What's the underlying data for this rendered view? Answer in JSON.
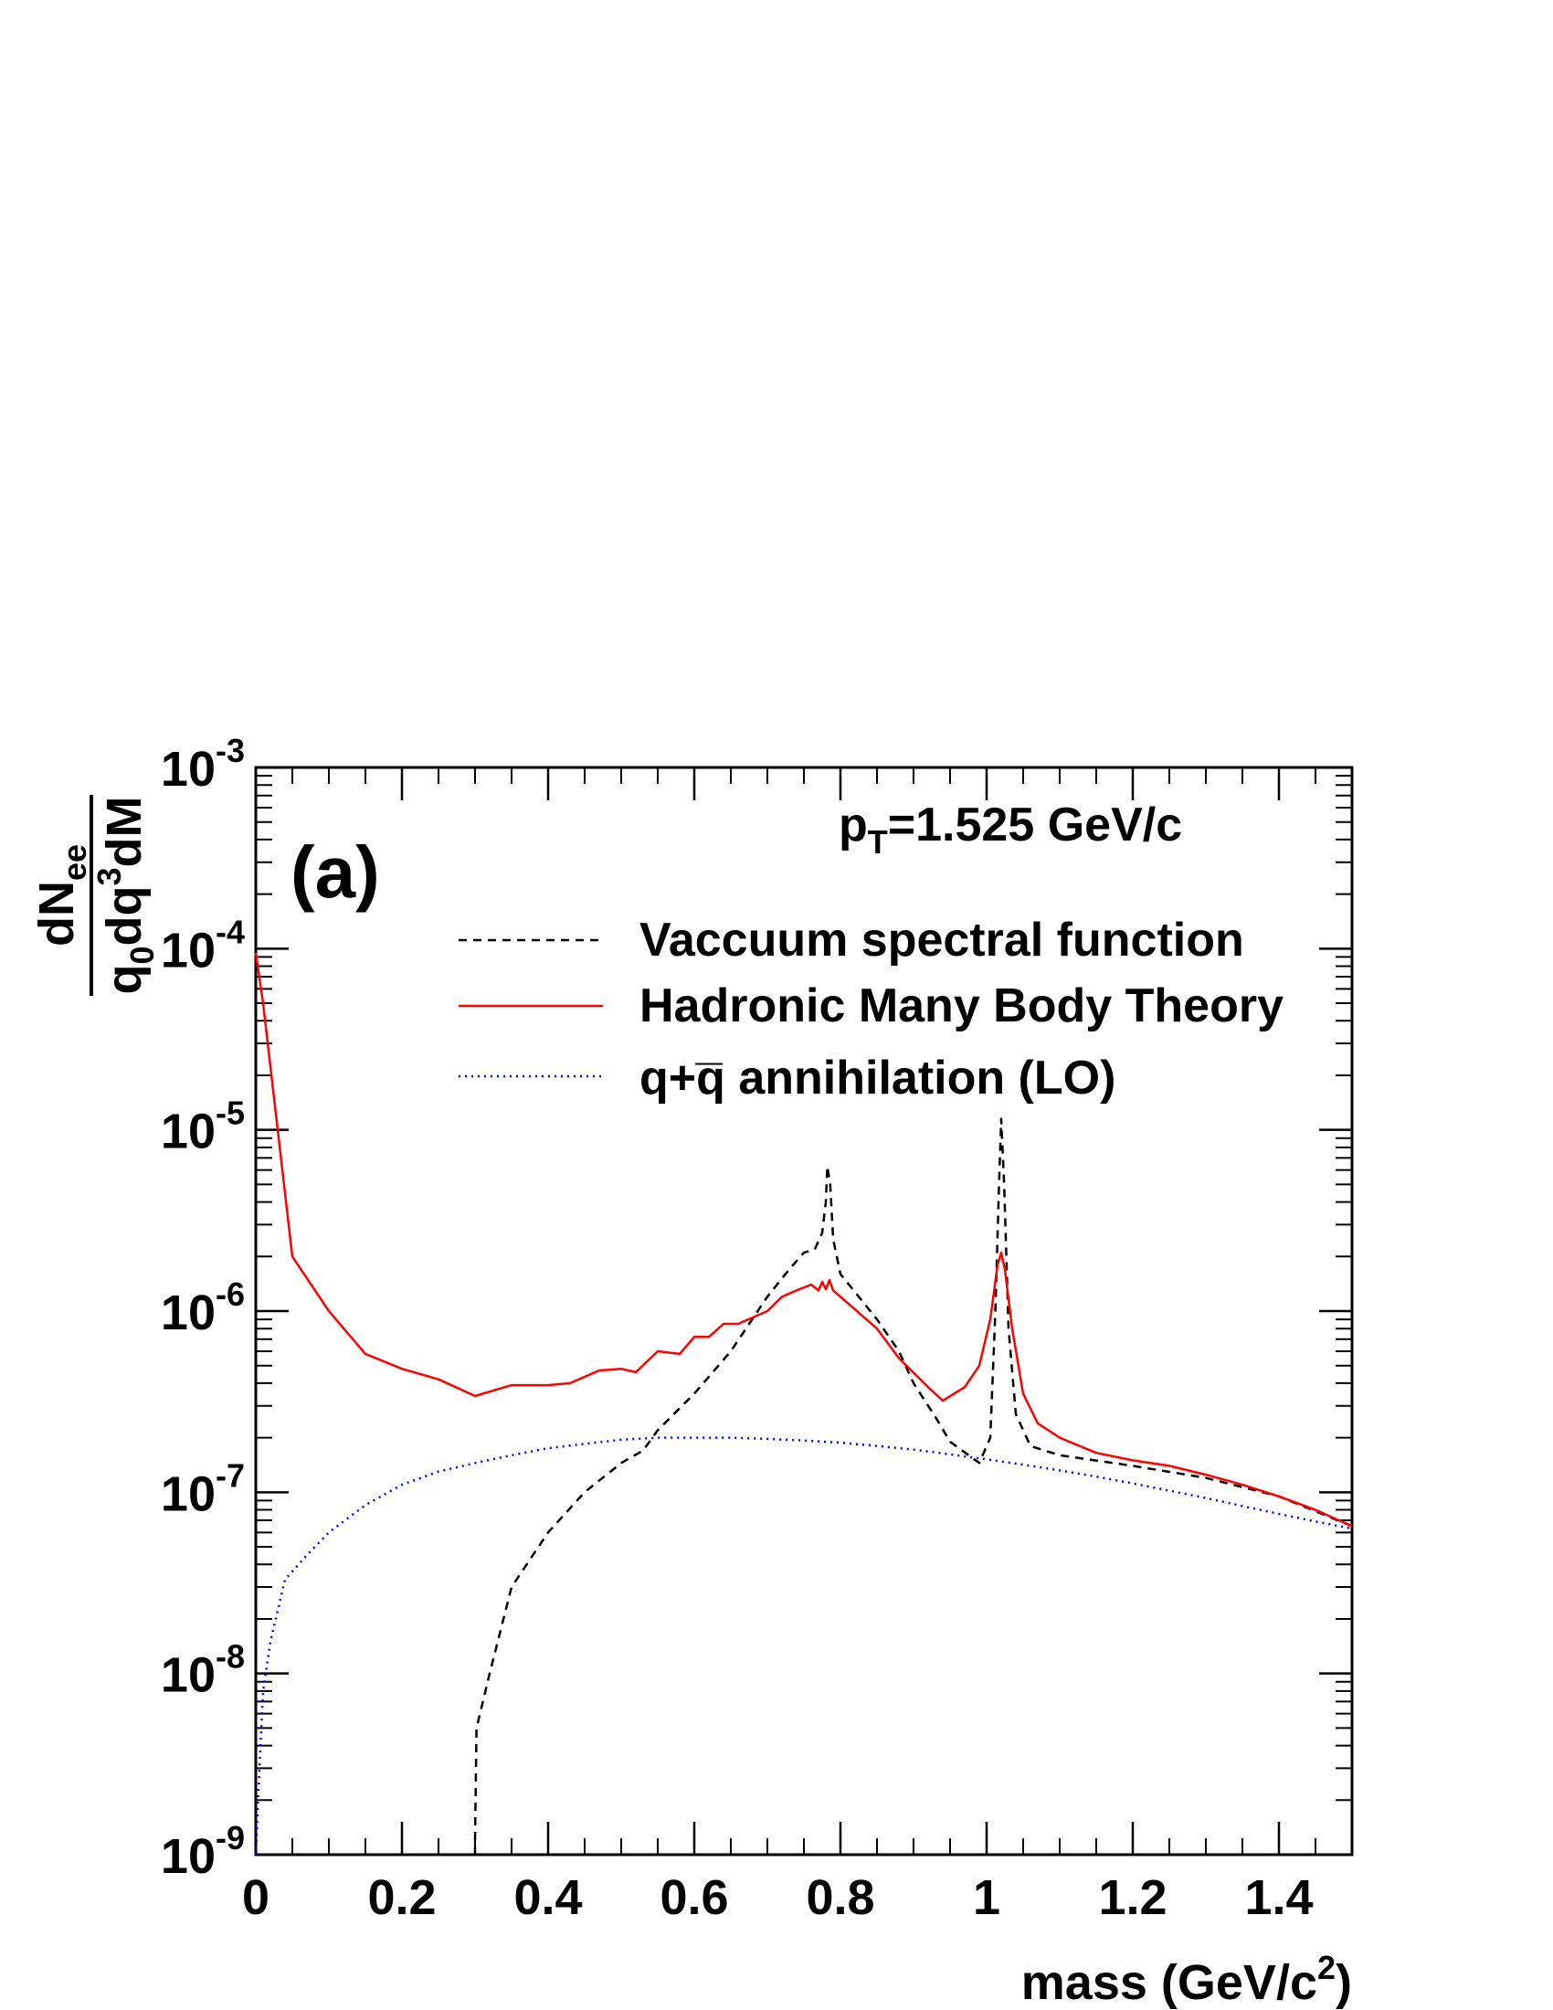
{
  "chart_data": {
    "type": "line",
    "panel_label": "(a)",
    "annotation": {
      "pre": "p",
      "sub": "T",
      "post": "=1.525 GeV/c"
    },
    "xlabel": {
      "main": "mass (GeV/c",
      "sup": "2",
      "end": ")"
    },
    "ylabel": {
      "numerator": {
        "main": "dN",
        "sub": "ee"
      },
      "denominator": {
        "q": "q",
        "sub0": "0",
        "dq": "dq",
        "sup3": "3",
        "end": "dM"
      }
    },
    "xlim": [
      0,
      1.5
    ],
    "ylim": [
      1e-09,
      0.001
    ],
    "yscale": "log",
    "x_ticks": [
      {
        "value": 0,
        "label": "0"
      },
      {
        "value": 0.2,
        "label": "0.2"
      },
      {
        "value": 0.4,
        "label": "0.4"
      },
      {
        "value": 0.6,
        "label": "0.6"
      },
      {
        "value": 0.8,
        "label": "0.8"
      },
      {
        "value": 1.0,
        "label": "1"
      },
      {
        "value": 1.2,
        "label": "1.2"
      },
      {
        "value": 1.4,
        "label": "1.4"
      }
    ],
    "y_ticks": [
      {
        "value": 1e-09,
        "base": "10",
        "exp": "-9"
      },
      {
        "value": 1e-08,
        "base": "10",
        "exp": "-8"
      },
      {
        "value": 1e-07,
        "base": "10",
        "exp": "-7"
      },
      {
        "value": 1e-06,
        "base": "10",
        "exp": "-6"
      },
      {
        "value": 1e-05,
        "base": "10",
        "exp": "-5"
      },
      {
        "value": 0.0001,
        "base": "10",
        "exp": "-4"
      },
      {
        "value": 0.001,
        "base": "10",
        "exp": "-3"
      }
    ],
    "legend_position": "top-right",
    "series": [
      {
        "name": "Vaccuum spectral function",
        "color": "#000000",
        "style": "dashed",
        "points": [
          [
            0.3,
            1e-09
          ],
          [
            0.3,
            1.2e-09
          ],
          [
            0.302,
            5e-09
          ],
          [
            0.32,
            1e-08
          ],
          [
            0.35,
            3e-08
          ],
          [
            0.4,
            6e-08
          ],
          [
            0.45,
            1e-07
          ],
          [
            0.5,
            1.45e-07
          ],
          [
            0.53,
            1.7e-07
          ],
          [
            0.55,
            2.2e-07
          ],
          [
            0.6,
            3.5e-07
          ],
          [
            0.65,
            6e-07
          ],
          [
            0.7,
            1.2e-06
          ],
          [
            0.73,
            1.7e-06
          ],
          [
            0.75,
            2.1e-06
          ],
          [
            0.765,
            2.2e-06
          ],
          [
            0.775,
            2.7e-06
          ],
          [
            0.78,
            4e-06
          ],
          [
            0.782,
            6.3e-06
          ],
          [
            0.786,
            5e-06
          ],
          [
            0.79,
            2.5e-06
          ],
          [
            0.8,
            1.6e-06
          ],
          [
            0.85,
            9e-07
          ],
          [
            0.88,
            6e-07
          ],
          [
            0.9,
            4e-07
          ],
          [
            0.93,
            2.6e-07
          ],
          [
            0.95,
            1.9e-07
          ],
          [
            0.99,
            1.45e-07
          ],
          [
            1.005,
            2e-07
          ],
          [
            1.012,
            1e-06
          ],
          [
            1.017,
            5e-06
          ],
          [
            1.02,
            1.15e-05
          ],
          [
            1.024,
            5e-06
          ],
          [
            1.03,
            8e-07
          ],
          [
            1.04,
            2.7e-07
          ],
          [
            1.06,
            1.8e-07
          ],
          [
            1.1,
            1.6e-07
          ],
          [
            1.2,
            1.4e-07
          ],
          [
            1.3,
            1.2e-07
          ],
          [
            1.4,
            9.5e-08
          ],
          [
            1.5,
            6.5e-08
          ]
        ]
      },
      {
        "name": "Hadronic Many Body Theory",
        "color": "#ff0000",
        "style": "solid",
        "points": [
          [
            0.0,
            9.5e-05
          ],
          [
            0.01,
            5e-05
          ],
          [
            0.03,
            1e-05
          ],
          [
            0.05,
            2e-06
          ],
          [
            0.1,
            1e-06
          ],
          [
            0.15,
            5.8e-07
          ],
          [
            0.2,
            4.8e-07
          ],
          [
            0.25,
            4.2e-07
          ],
          [
            0.3,
            3.4e-07
          ],
          [
            0.35,
            3.9e-07
          ],
          [
            0.4,
            3.9e-07
          ],
          [
            0.43,
            4e-07
          ],
          [
            0.47,
            4.7e-07
          ],
          [
            0.5,
            4.8e-07
          ],
          [
            0.52,
            4.6e-07
          ],
          [
            0.55,
            6e-07
          ],
          [
            0.58,
            5.8e-07
          ],
          [
            0.6,
            7.2e-07
          ],
          [
            0.62,
            7.2e-07
          ],
          [
            0.64,
            8.5e-07
          ],
          [
            0.66,
            8.5e-07
          ],
          [
            0.7,
            1e-06
          ],
          [
            0.72,
            1.2e-06
          ],
          [
            0.74,
            1.3e-06
          ],
          [
            0.76,
            1.4e-06
          ],
          [
            0.77,
            1.3e-06
          ],
          [
            0.775,
            1.45e-06
          ],
          [
            0.78,
            1.32e-06
          ],
          [
            0.785,
            1.48e-06
          ],
          [
            0.79,
            1.3e-06
          ],
          [
            0.8,
            1.2e-06
          ],
          [
            0.85,
            8e-07
          ],
          [
            0.88,
            5.5e-07
          ],
          [
            0.92,
            3.8e-07
          ],
          [
            0.94,
            3.2e-07
          ],
          [
            0.97,
            3.8e-07
          ],
          [
            0.99,
            5e-07
          ],
          [
            1.005,
            9e-07
          ],
          [
            1.015,
            1.8e-06
          ],
          [
            1.02,
            2.1e-06
          ],
          [
            1.025,
            1.7e-06
          ],
          [
            1.035,
            8e-07
          ],
          [
            1.05,
            3.5e-07
          ],
          [
            1.07,
            2.4e-07
          ],
          [
            1.1,
            2e-07
          ],
          [
            1.15,
            1.65e-07
          ],
          [
            1.2,
            1.5e-07
          ],
          [
            1.25,
            1.4e-07
          ],
          [
            1.3,
            1.25e-07
          ],
          [
            1.35,
            1.1e-07
          ],
          [
            1.4,
            9.5e-08
          ],
          [
            1.45,
            8e-08
          ],
          [
            1.5,
            6.5e-08
          ]
        ]
      },
      {
        "name": "q+q̅ annihilation (LO)",
        "color": "#0000ff",
        "style": "dotted",
        "points": [
          [
            0.0,
            1e-09
          ],
          [
            0.005,
            3e-09
          ],
          [
            0.01,
            8e-09
          ],
          [
            0.02,
            1.5e-08
          ],
          [
            0.04,
            3.3e-08
          ],
          [
            0.07,
            4.5e-08
          ],
          [
            0.1,
            6e-08
          ],
          [
            0.15,
            8.5e-08
          ],
          [
            0.2,
            1.1e-07
          ],
          [
            0.25,
            1.3e-07
          ],
          [
            0.3,
            1.45e-07
          ],
          [
            0.35,
            1.6e-07
          ],
          [
            0.4,
            1.75e-07
          ],
          [
            0.45,
            1.85e-07
          ],
          [
            0.5,
            1.95e-07
          ],
          [
            0.55,
            2e-07
          ],
          [
            0.6,
            2e-07
          ],
          [
            0.65,
            2e-07
          ],
          [
            0.7,
            1.97e-07
          ],
          [
            0.75,
            1.93e-07
          ],
          [
            0.8,
            1.88e-07
          ],
          [
            0.85,
            1.8e-07
          ],
          [
            0.9,
            1.72e-07
          ],
          [
            0.95,
            1.62e-07
          ],
          [
            1.0,
            1.52e-07
          ],
          [
            1.05,
            1.42e-07
          ],
          [
            1.1,
            1.32e-07
          ],
          [
            1.15,
            1.22e-07
          ],
          [
            1.2,
            1.12e-07
          ],
          [
            1.25,
            1.02e-07
          ],
          [
            1.3,
            9.3e-08
          ],
          [
            1.35,
            8.4e-08
          ],
          [
            1.4,
            7.6e-08
          ],
          [
            1.45,
            6.9e-08
          ],
          [
            1.5,
            6.3e-08
          ]
        ]
      }
    ]
  }
}
